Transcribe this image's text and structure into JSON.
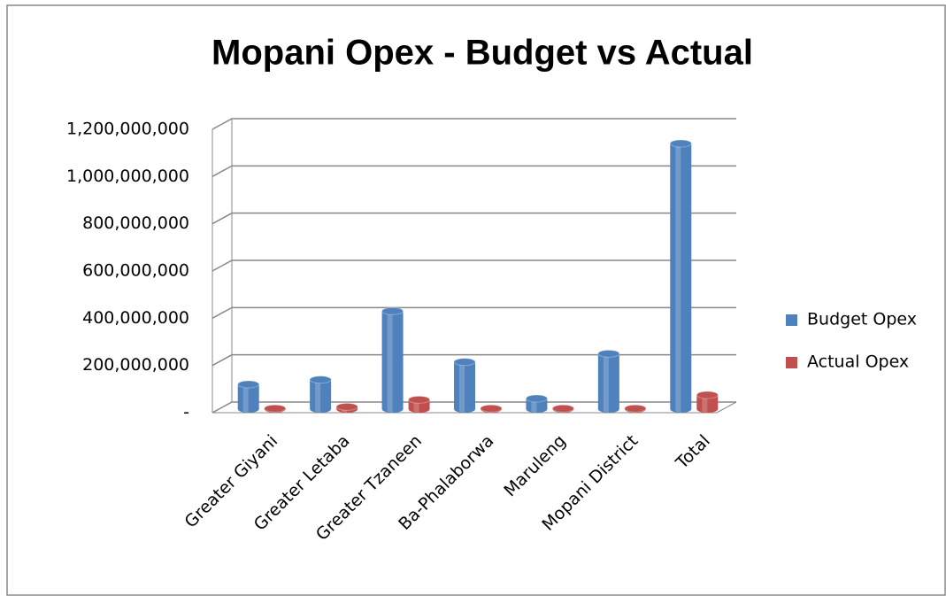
{
  "chart_data": {
    "type": "bar3d",
    "title": "Mopani Opex - Budget vs Actual",
    "categories": [
      "Greater Giyani",
      "Greater Letaba",
      "Greater Tzaneen",
      "Ba-Phalaborwa",
      "Maruleng",
      "Mopani District",
      "Total"
    ],
    "series": [
      {
        "name": "Budget Opex",
        "color": "#4f81bd",
        "values": [
          105000000,
          125000000,
          415000000,
          200000000,
          45000000,
          235000000,
          1125000000
        ]
      },
      {
        "name": "Actual Opex",
        "color": "#c0504d",
        "values": [
          3000000,
          10000000,
          40000000,
          3000000,
          3000000,
          3000000,
          60000000
        ]
      }
    ],
    "ylim": [
      0,
      1200000000
    ],
    "yticks": [
      {
        "value": 0,
        "label": "-"
      },
      {
        "value": 200000000,
        "label": "200,000,000"
      },
      {
        "value": 400000000,
        "label": "400,000,000"
      },
      {
        "value": 600000000,
        "label": "600,000,000"
      },
      {
        "value": 800000000,
        "label": "800,000,000"
      },
      {
        "value": 1000000000,
        "label": "1,000,000,000"
      },
      {
        "value": 1200000000,
        "label": "1,200,000,000"
      }
    ],
    "grid": true,
    "legend": "right"
  }
}
